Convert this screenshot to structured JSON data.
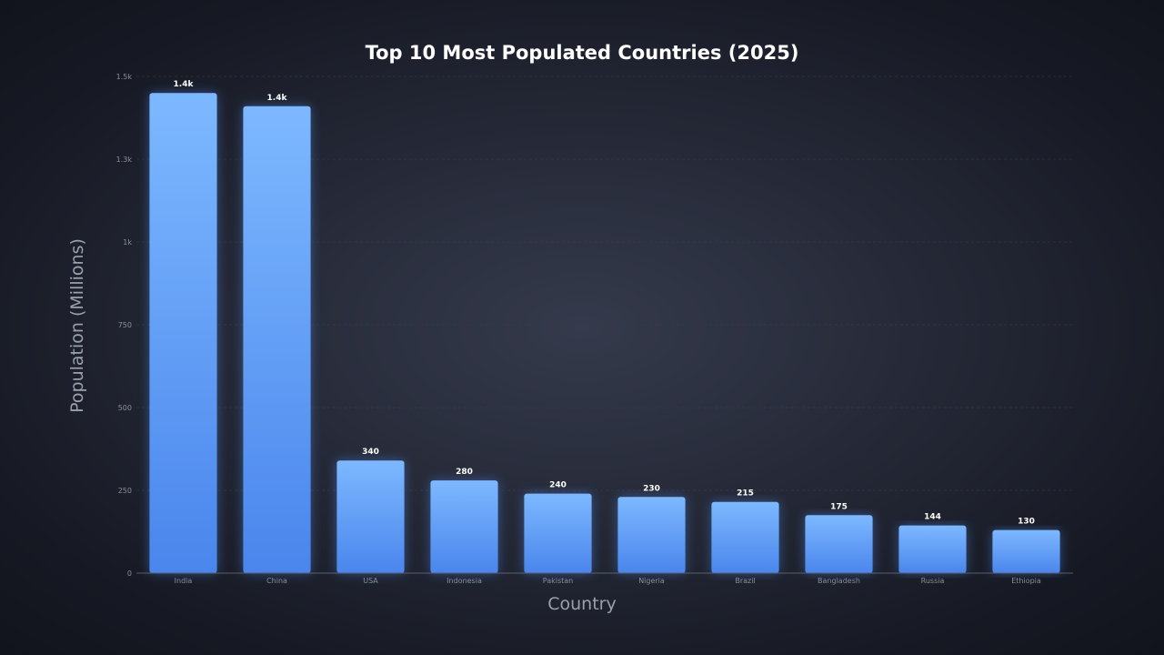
{
  "chart_data": {
    "type": "bar",
    "title": "Top 10 Most Populated Countries (2025)",
    "xlabel": "Country",
    "ylabel": "Population (Millions)",
    "categories": [
      "India",
      "China",
      "USA",
      "Indonesia",
      "Pakistan",
      "Nigeria",
      "Brazil",
      "Bangladesh",
      "Russia",
      "Ethiopia"
    ],
    "values": [
      1450,
      1410,
      340,
      280,
      240,
      230,
      215,
      175,
      144,
      130
    ],
    "data_labels": [
      "1.4k",
      "1.4k",
      "340",
      "280",
      "240",
      "230",
      "215",
      "175",
      "144",
      "130"
    ],
    "ylim": [
      0,
      1500
    ],
    "yticks": [
      0,
      250,
      500,
      750,
      1000,
      1250,
      1500
    ],
    "ytick_labels": [
      "0",
      "250",
      "500",
      "750",
      "1k",
      "1.3k",
      "1.5k"
    ],
    "grid": true,
    "colors": {
      "bar_top": "#7db8ff",
      "bar_bottom": "#4a86ec",
      "glow": "#4f8ef7"
    }
  }
}
